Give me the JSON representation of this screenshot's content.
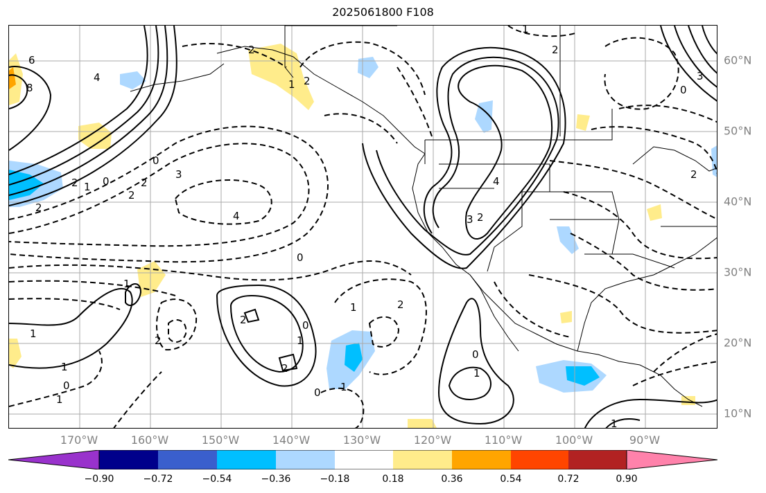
{
  "title": "2025061800 F108",
  "longitude_labels": [
    "170°W",
    "160°W",
    "150°W",
    "140°W",
    "130°W",
    "120°W",
    "110°W",
    "100°W",
    "90°W"
  ],
  "latitude_labels": [
    "60°N",
    "50°N",
    "40°N",
    "30°N",
    "20°N",
    "10°N"
  ],
  "colorbar": {
    "ticks": [
      "−0.90",
      "−0.72",
      "−0.54",
      "−0.36",
      "−0.18",
      "0.18",
      "0.36",
      "0.54",
      "0.72",
      "0.90"
    ],
    "colors": [
      "#9932cc",
      "#00008b",
      "#3a5fcd",
      "#00bfff",
      "#add8ff",
      "#ffffff",
      "#ffec8b",
      "#ffa500",
      "#ff4500",
      "#b22222",
      "#ff82ab"
    ]
  },
  "contour_labels": [
    "6",
    "8",
    "4",
    "2",
    "1",
    "0",
    "2",
    "2",
    "2",
    "0",
    "3",
    "4",
    "0",
    "2",
    "1",
    "2",
    "1",
    "1",
    "2",
    "2",
    "0",
    "1",
    "2",
    "1",
    "0",
    "1",
    "2",
    "0",
    "1",
    "0",
    "1",
    "2",
    "4",
    "3",
    "2",
    "1",
    "0",
    "3",
    "1",
    "1",
    "2"
  ],
  "map": {
    "grid_color": "#aaaaaa",
    "line_style": "solid = positive, dashed = negative contours"
  }
}
